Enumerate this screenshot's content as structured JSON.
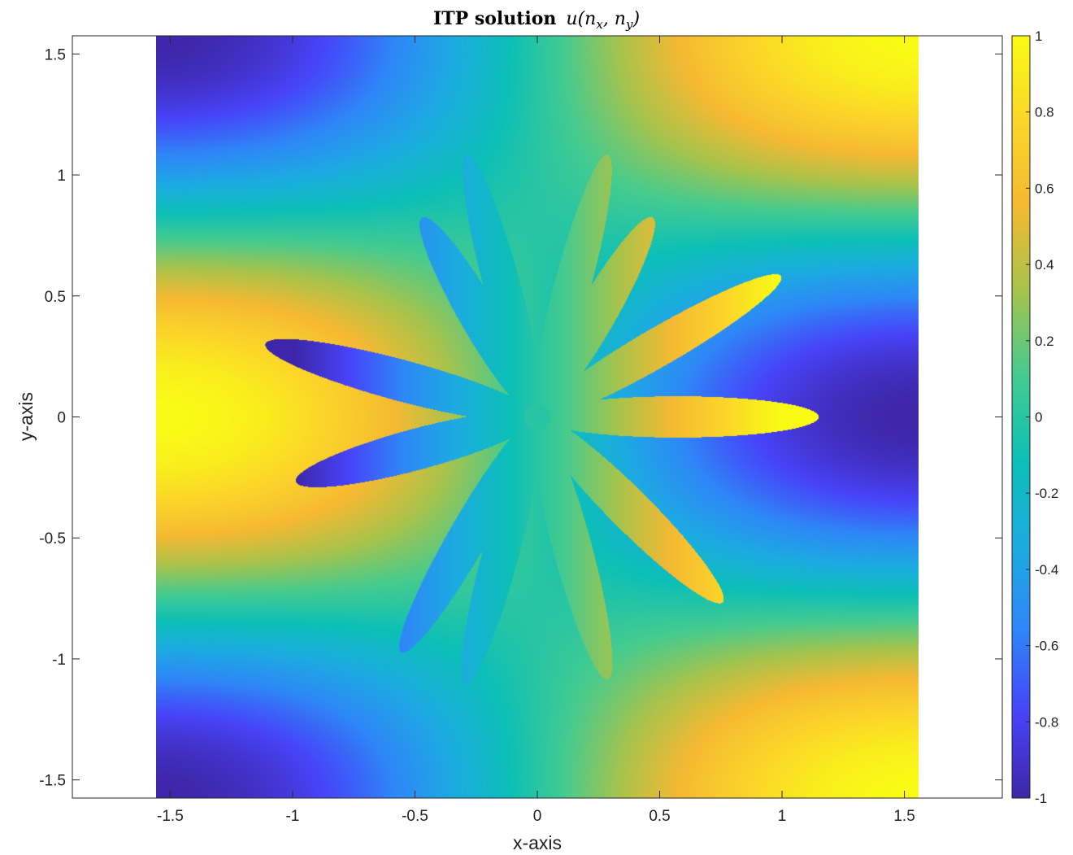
{
  "chart_data": {
    "type": "heatmap",
    "title": "ITP solution",
    "title_math": "u(n_x, n_y)",
    "xlabel": "x-axis",
    "ylabel": "y-axis",
    "xlim": [
      -1.9,
      1.9
    ],
    "ylim": [
      -1.575,
      1.575
    ],
    "data_extent": {
      "x": [
        -1.5708,
        1.5708
      ],
      "y": [
        -1.5708,
        1.5708
      ]
    },
    "xticks": [
      -1.5,
      -1,
      -0.5,
      0,
      0.5,
      1,
      1.5
    ],
    "xtick_labels": [
      "-1.5",
      "-1",
      "-0.5",
      "0",
      "0.5",
      "1",
      "1.5"
    ],
    "yticks": [
      -1.5,
      -1,
      -0.5,
      0,
      0.5,
      1,
      1.5
    ],
    "ytick_labels": [
      "-1.5",
      "-1",
      "-0.5",
      "0",
      "0.5",
      "1",
      "1.5"
    ],
    "colormap": "parula",
    "colormap_stops": [
      "#3e26a8",
      "#4743f8",
      "#2e87f7",
      "#1cabe1",
      "#0cbfb7",
      "#45cb8f",
      "#a7c34c",
      "#f5b932",
      "#fbd629",
      "#f9fb15"
    ],
    "clim": [
      -1,
      1
    ],
    "colorbar": {
      "ticks": [
        -1,
        -0.8,
        -0.6,
        -0.4,
        -0.2,
        0,
        0.2,
        0.4,
        0.6,
        0.8,
        1
      ],
      "tick_labels": [
        "-1",
        "-0.8",
        "-0.6",
        "-0.4",
        "-0.2",
        "0",
        "0.2",
        "0.4",
        "0.6",
        "0.8",
        "1"
      ],
      "location": "right"
    },
    "field": {
      "background": "u = -sin(x) * cos(2y)",
      "petal_count": 12,
      "petal_angles_deg": [
        0,
        30,
        60,
        75,
        105,
        120,
        165,
        195,
        240,
        255,
        285,
        315
      ],
      "petal_lengths": [
        1.16,
        1.16,
        0.95,
        1.12,
        1.12,
        0.95,
        1.16,
        1.03,
        1.12,
        1.14,
        1.12,
        1.08
      ],
      "petal_half_widths": [
        0.085,
        0.08,
        0.08,
        0.075,
        0.075,
        0.08,
        0.085,
        0.085,
        0.08,
        0.075,
        0.08,
        0.085
      ],
      "petal_value": "u = x",
      "center_value": 0
    }
  }
}
